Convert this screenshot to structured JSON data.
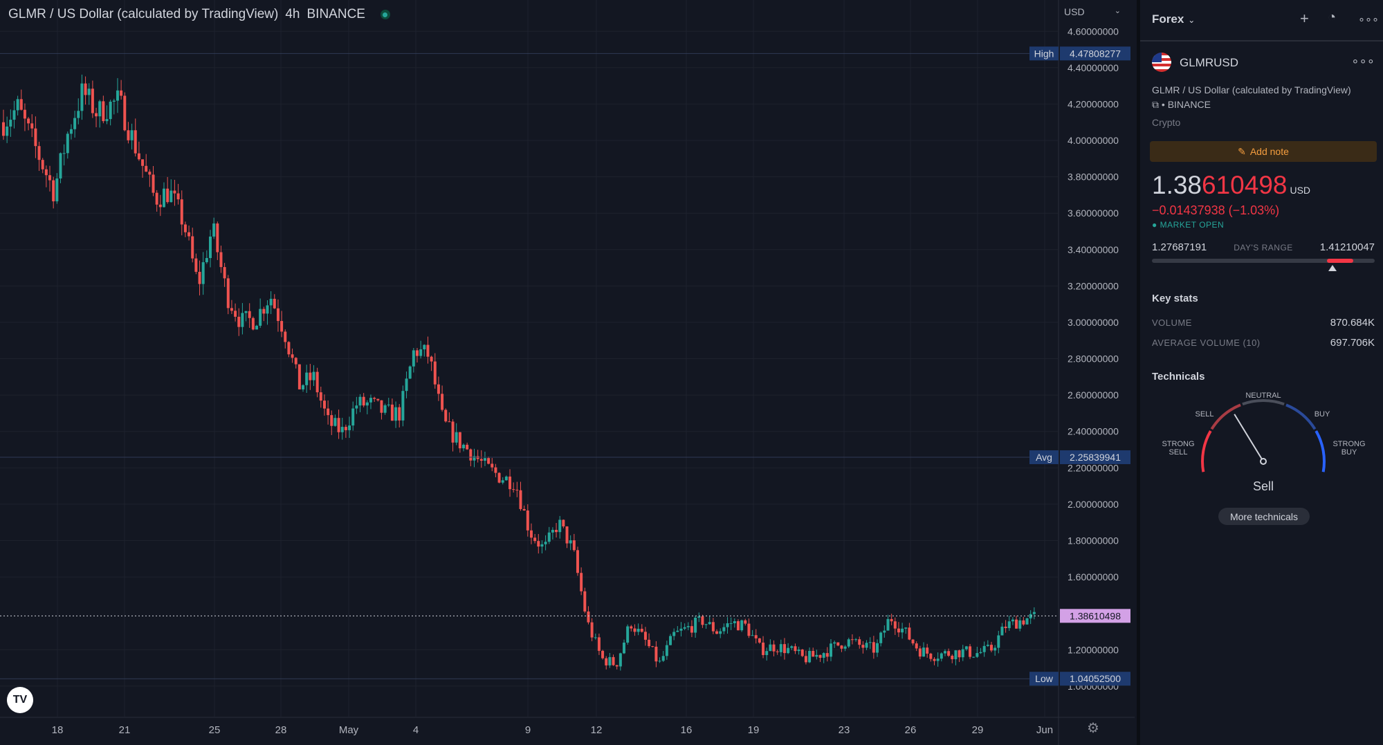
{
  "header": {
    "title": "GLMR / US Dollar (calculated by TradingView)",
    "interval": "4h",
    "exchange": "BINANCE",
    "currency": "USD"
  },
  "price_axis": {
    "labels": [
      "4.60000000",
      "4.40000000",
      "4.20000000",
      "4.00000000",
      "3.80000000",
      "3.60000000",
      "3.40000000",
      "3.20000000",
      "3.00000000",
      "2.80000000",
      "2.60000000",
      "2.40000000",
      "2.20000000",
      "2.00000000",
      "1.80000000",
      "1.60000000",
      "1.20000000",
      "1.00000000"
    ],
    "high_label": "High",
    "high_value": "4.47808277",
    "avg_label": "Avg",
    "avg_value": "2.25839941",
    "low_label": "Low",
    "low_value": "1.04052500",
    "last_value": "1.38610498"
  },
  "time_axis": {
    "labels": [
      "18",
      "21",
      "25",
      "28",
      "May",
      "4",
      "9",
      "12",
      "16",
      "19",
      "23",
      "26",
      "29",
      "Jun"
    ]
  },
  "chart_data": {
    "type": "candlestick",
    "ylim": [
      0.95,
      4.62
    ],
    "high": 4.47808277,
    "avg": 2.25839941,
    "low": 1.040525,
    "last": 1.38610498,
    "close_path": [
      {
        "x": 0,
        "y": 4.1
      },
      {
        "x": 2,
        "y": 4.18
      },
      {
        "x": 4,
        "y": 4.0
      },
      {
        "x": 7,
        "y": 3.72
      },
      {
        "x": 9,
        "y": 4.05
      },
      {
        "x": 11,
        "y": 4.27
      },
      {
        "x": 13,
        "y": 4.15
      },
      {
        "x": 16,
        "y": 4.22
      },
      {
        "x": 18,
        "y": 4.0
      },
      {
        "x": 21,
        "y": 3.68
      },
      {
        "x": 23,
        "y": 3.72
      },
      {
        "x": 25,
        "y": 3.55
      },
      {
        "x": 27,
        "y": 3.2
      },
      {
        "x": 29,
        "y": 3.52
      },
      {
        "x": 31,
        "y": 3.15
      },
      {
        "x": 33,
        "y": 3.0
      },
      {
        "x": 35,
        "y": 3.02
      },
      {
        "x": 37,
        "y": 3.15
      },
      {
        "x": 39,
        "y": 2.95
      },
      {
        "x": 41,
        "y": 2.65
      },
      {
        "x": 43,
        "y": 2.7
      },
      {
        "x": 45,
        "y": 2.45
      },
      {
        "x": 47,
        "y": 2.4
      },
      {
        "x": 49,
        "y": 2.55
      },
      {
        "x": 51,
        "y": 2.55
      },
      {
        "x": 53,
        "y": 2.5
      },
      {
        "x": 55,
        "y": 2.5
      },
      {
        "x": 57,
        "y": 2.85
      },
      {
        "x": 59,
        "y": 2.82
      },
      {
        "x": 61,
        "y": 2.45
      },
      {
        "x": 63,
        "y": 2.35
      },
      {
        "x": 65,
        "y": 2.28
      },
      {
        "x": 67,
        "y": 2.2
      },
      {
        "x": 69,
        "y": 2.15
      },
      {
        "x": 71,
        "y": 2.12
      },
      {
        "x": 73,
        "y": 1.85
      },
      {
        "x": 75,
        "y": 1.75
      },
      {
        "x": 77,
        "y": 1.9
      },
      {
        "x": 79,
        "y": 1.75
      },
      {
        "x": 81,
        "y": 1.35
      },
      {
        "x": 83,
        "y": 1.15
      },
      {
        "x": 85,
        "y": 1.12
      },
      {
        "x": 87,
        "y": 1.35
      },
      {
        "x": 89,
        "y": 1.25
      },
      {
        "x": 91,
        "y": 1.12
      },
      {
        "x": 93,
        "y": 1.28
      },
      {
        "x": 95,
        "y": 1.32
      },
      {
        "x": 97,
        "y": 1.36
      },
      {
        "x": 99,
        "y": 1.3
      },
      {
        "x": 101,
        "y": 1.35
      },
      {
        "x": 103,
        "y": 1.33
      },
      {
        "x": 105,
        "y": 1.2
      },
      {
        "x": 107,
        "y": 1.22
      },
      {
        "x": 109,
        "y": 1.2
      },
      {
        "x": 111,
        "y": 1.15
      },
      {
        "x": 113,
        "y": 1.17
      },
      {
        "x": 115,
        "y": 1.21
      },
      {
        "x": 117,
        "y": 1.25
      },
      {
        "x": 119,
        "y": 1.22
      },
      {
        "x": 121,
        "y": 1.2
      },
      {
        "x": 123,
        "y": 1.38
      },
      {
        "x": 125,
        "y": 1.3
      },
      {
        "x": 127,
        "y": 1.2
      },
      {
        "x": 129,
        "y": 1.17
      },
      {
        "x": 131,
        "y": 1.18
      },
      {
        "x": 133,
        "y": 1.19
      },
      {
        "x": 135,
        "y": 1.18
      },
      {
        "x": 137,
        "y": 1.2
      },
      {
        "x": 139,
        "y": 1.33
      },
      {
        "x": 141,
        "y": 1.36
      },
      {
        "x": 143,
        "y": 1.38
      }
    ]
  },
  "panel": {
    "list_title": "Forex",
    "symbol": "GLMRUSD",
    "description": "GLMR / US Dollar (calculated by TradingView)",
    "exchange": "BINANCE",
    "category": "Crypto",
    "add_note": "Add note",
    "price_main": "1.38",
    "price_tail": "610498",
    "price_unit": "USD",
    "change": "−0.01437938 (−1.03%)",
    "market_status": "MARKET OPEN",
    "range_low": "1.27687191",
    "range_label": "DAY'S RANGE",
    "range_high": "1.41210047",
    "range_position": 0.81,
    "key_stats_title": "Key stats",
    "volume_label": "VOLUME",
    "volume_value": "870.684K",
    "avg_volume_label": "AVERAGE VOLUME (10)",
    "avg_volume_value": "697.706K",
    "technicals_title": "Technicals",
    "gauge": {
      "strong_sell": [
        "STRONG",
        "SELL"
      ],
      "sell": "SELL",
      "neutral": "NEUTRAL",
      "buy": "BUY",
      "strong_buy": [
        "STRONG",
        "BUY"
      ],
      "needle_value": -0.35
    },
    "verdict": "Sell",
    "more_technicals": "More technicals"
  },
  "colors": {
    "up": "#26a69a",
    "down": "#ef5350",
    "background": "#131722",
    "grid": "#1e222d",
    "label_blue": "#1e3a6e",
    "last_price": "#d3a1e6"
  }
}
